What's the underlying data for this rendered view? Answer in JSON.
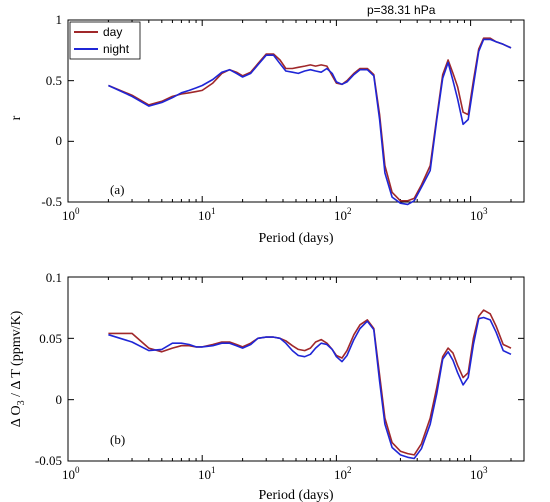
{
  "colors": {
    "day": "#a0282a",
    "night": "#1f26d6"
  },
  "chart_data": [
    {
      "type": "line",
      "panel_label": "(a)",
      "annotation": "p=38.31 hPa",
      "xlabel": "Period (days)",
      "ylabel": "r",
      "xscale": "log",
      "xlim": [
        1,
        2500
      ],
      "ylim": [
        -0.5,
        1
      ],
      "yticks": [
        -0.5,
        0,
        0.5,
        1
      ],
      "ytick_labels": [
        "-0.5",
        "0",
        "0.5",
        "1"
      ],
      "xticks": [
        1,
        10,
        100,
        1000
      ],
      "xtick_labels": [
        {
          "base": "10",
          "exp": "0"
        },
        {
          "base": "10",
          "exp": "1"
        },
        {
          "base": "10",
          "exp": "2"
        },
        {
          "base": "10",
          "exp": "3"
        }
      ],
      "legend": {
        "position": "top-left",
        "entries": [
          "day",
          "night"
        ]
      },
      "x": [
        2,
        3,
        4,
        5,
        6,
        7,
        8,
        9,
        10,
        12,
        14,
        16,
        18,
        20,
        23,
        26,
        30,
        34,
        38,
        42,
        47,
        52,
        58,
        64,
        70,
        77,
        85,
        93,
        100,
        110,
        120,
        135,
        150,
        170,
        190,
        210,
        230,
        260,
        300,
        340,
        380,
        430,
        500,
        560,
        620,
        680,
        740,
        800,
        880,
        960,
        1050,
        1150,
        1250,
        1400,
        1550,
        1750,
        2000
      ],
      "series": [
        {
          "name": "day",
          "color_key": "day",
          "values": [
            0.46,
            0.38,
            0.3,
            0.33,
            0.37,
            0.39,
            0.4,
            0.41,
            0.42,
            0.48,
            0.56,
            0.59,
            0.57,
            0.54,
            0.57,
            0.64,
            0.72,
            0.72,
            0.67,
            0.6,
            0.6,
            0.61,
            0.62,
            0.63,
            0.62,
            0.63,
            0.62,
            0.54,
            0.48,
            0.47,
            0.5,
            0.56,
            0.6,
            0.6,
            0.55,
            0.22,
            -0.2,
            -0.42,
            -0.49,
            -0.49,
            -0.47,
            -0.36,
            -0.2,
            0.2,
            0.55,
            0.67,
            0.56,
            0.45,
            0.24,
            0.22,
            0.5,
            0.76,
            0.85,
            0.85,
            0.82,
            0.8,
            0.77
          ]
        },
        {
          "name": "night",
          "color_key": "night",
          "values": [
            0.46,
            0.37,
            0.29,
            0.32,
            0.36,
            0.4,
            0.42,
            0.44,
            0.46,
            0.51,
            0.57,
            0.59,
            0.56,
            0.53,
            0.56,
            0.63,
            0.71,
            0.71,
            0.64,
            0.58,
            0.57,
            0.56,
            0.58,
            0.59,
            0.58,
            0.57,
            0.6,
            0.56,
            0.49,
            0.47,
            0.49,
            0.55,
            0.59,
            0.59,
            0.54,
            0.18,
            -0.26,
            -0.46,
            -0.51,
            -0.52,
            -0.49,
            -0.38,
            -0.24,
            0.18,
            0.52,
            0.65,
            0.5,
            0.35,
            0.14,
            0.18,
            0.46,
            0.74,
            0.84,
            0.84,
            0.82,
            0.8,
            0.77
          ]
        }
      ]
    },
    {
      "type": "line",
      "panel_label": "(b)",
      "xlabel": "Period (days)",
      "ylabel": "Δ O3 / Δ T (ppmv/K)",
      "ylabel_parts": {
        "pre": "Δ O",
        "sub": "3",
        "post": " / Δ T (ppmv/K)"
      },
      "xscale": "log",
      "xlim": [
        1,
        2500
      ],
      "ylim": [
        -0.05,
        0.1
      ],
      "yticks": [
        -0.05,
        0,
        0.05,
        0.1
      ],
      "ytick_labels": [
        "-0.05",
        "0",
        "0.05",
        "0.1"
      ],
      "xticks": [
        1,
        10,
        100,
        1000
      ],
      "xtick_labels": [
        {
          "base": "10",
          "exp": "0"
        },
        {
          "base": "10",
          "exp": "1"
        },
        {
          "base": "10",
          "exp": "2"
        },
        {
          "base": "10",
          "exp": "3"
        }
      ],
      "x": [
        2,
        3,
        4,
        5,
        6,
        7,
        8,
        9,
        10,
        12,
        14,
        16,
        18,
        20,
        23,
        26,
        30,
        34,
        38,
        42,
        47,
        52,
        58,
        64,
        70,
        77,
        85,
        93,
        100,
        110,
        120,
        135,
        150,
        170,
        190,
        210,
        230,
        260,
        300,
        340,
        380,
        430,
        500,
        560,
        620,
        680,
        740,
        800,
        880,
        960,
        1050,
        1150,
        1250,
        1400,
        1550,
        1750,
        2000
      ],
      "series": [
        {
          "name": "day",
          "color_key": "day",
          "values": [
            0.054,
            0.054,
            0.042,
            0.039,
            0.042,
            0.044,
            0.044,
            0.043,
            0.043,
            0.045,
            0.047,
            0.047,
            0.045,
            0.043,
            0.046,
            0.05,
            0.051,
            0.051,
            0.05,
            0.048,
            0.044,
            0.041,
            0.04,
            0.042,
            0.047,
            0.049,
            0.046,
            0.041,
            0.036,
            0.034,
            0.04,
            0.053,
            0.061,
            0.065,
            0.058,
            0.02,
            -0.015,
            -0.035,
            -0.042,
            -0.044,
            -0.045,
            -0.036,
            -0.015,
            0.01,
            0.035,
            0.042,
            0.038,
            0.028,
            0.018,
            0.022,
            0.05,
            0.068,
            0.073,
            0.07,
            0.06,
            0.045,
            0.042
          ]
        },
        {
          "name": "night",
          "color_key": "night",
          "values": [
            0.053,
            0.047,
            0.04,
            0.041,
            0.046,
            0.046,
            0.045,
            0.043,
            0.043,
            0.044,
            0.046,
            0.046,
            0.044,
            0.042,
            0.045,
            0.05,
            0.051,
            0.051,
            0.05,
            0.046,
            0.04,
            0.036,
            0.035,
            0.037,
            0.042,
            0.046,
            0.045,
            0.041,
            0.035,
            0.031,
            0.036,
            0.049,
            0.058,
            0.064,
            0.057,
            0.015,
            -0.02,
            -0.039,
            -0.045,
            -0.047,
            -0.048,
            -0.04,
            -0.02,
            0.005,
            0.033,
            0.039,
            0.032,
            0.022,
            0.012,
            0.018,
            0.045,
            0.066,
            0.067,
            0.065,
            0.055,
            0.04,
            0.037
          ]
        }
      ]
    }
  ]
}
